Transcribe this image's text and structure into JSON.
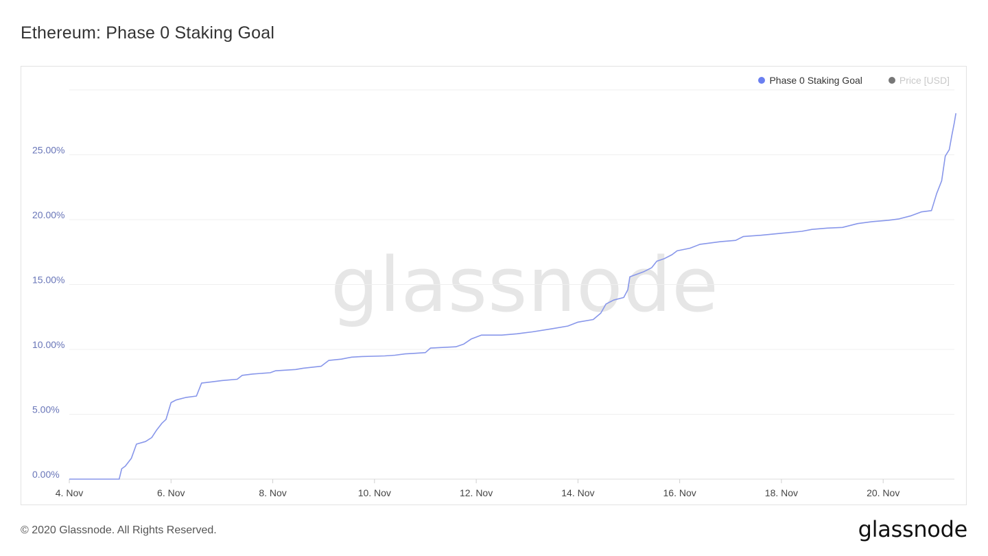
{
  "page": {
    "title": "Ethereum: Phase 0 Staking Goal",
    "watermark": "glassnode",
    "copyright": "© 2020 Glassnode. All Rights Reserved.",
    "logo": "glassnode"
  },
  "colors": {
    "series": "#8796ea",
    "legend_dot_primary": "#6a7ff0",
    "legend_dot_price": "#777777",
    "axis_label": "#6875b8",
    "grid": "#efefef"
  },
  "chart_data": {
    "type": "line",
    "title": "Ethereum: Phase 0 Staking Goal",
    "xlabel": "",
    "ylabel": "",
    "x_tick_labels": [
      "4. Nov",
      "6. Nov",
      "8. Nov",
      "10. Nov",
      "12. Nov",
      "14. Nov",
      "16. Nov",
      "18. Nov",
      "20. Nov"
    ],
    "x_tick_days": [
      4,
      6,
      8,
      10,
      12,
      14,
      16,
      18,
      20
    ],
    "xlim": [
      4.0,
      21.4
    ],
    "y_tick_labels": [
      "0.00%",
      "5.00%",
      "10.00%",
      "15.00%",
      "20.00%",
      "25.00%"
    ],
    "y_tick_values": [
      0,
      5,
      10,
      15,
      20,
      25
    ],
    "ylim": [
      0,
      30
    ],
    "grid": true,
    "legend_position": "top-right",
    "legend": [
      {
        "label": "Phase 0 Staking Goal",
        "active": true
      },
      {
        "label": "Price [USD]",
        "active": false
      }
    ],
    "series": [
      {
        "name": "Phase 0 Staking Goal",
        "unit": "%",
        "points": [
          [
            4.0,
            0.0
          ],
          [
            4.98,
            0.0
          ],
          [
            5.03,
            0.8
          ],
          [
            5.1,
            1.0
          ],
          [
            5.22,
            1.6
          ],
          [
            5.32,
            2.7
          ],
          [
            5.5,
            2.9
          ],
          [
            5.62,
            3.2
          ],
          [
            5.72,
            3.8
          ],
          [
            5.82,
            4.3
          ],
          [
            5.9,
            4.6
          ],
          [
            6.0,
            5.9
          ],
          [
            6.1,
            6.1
          ],
          [
            6.3,
            6.3
          ],
          [
            6.5,
            6.4
          ],
          [
            6.6,
            7.4
          ],
          [
            6.8,
            7.5
          ],
          [
            7.0,
            7.6
          ],
          [
            7.3,
            7.7
          ],
          [
            7.4,
            8.0
          ],
          [
            7.6,
            8.1
          ],
          [
            7.95,
            8.2
          ],
          [
            8.05,
            8.35
          ],
          [
            8.45,
            8.45
          ],
          [
            8.6,
            8.55
          ],
          [
            8.95,
            8.7
          ],
          [
            9.1,
            9.15
          ],
          [
            9.35,
            9.25
          ],
          [
            9.55,
            9.4
          ],
          [
            9.75,
            9.45
          ],
          [
            10.2,
            9.5
          ],
          [
            10.4,
            9.55
          ],
          [
            10.6,
            9.65
          ],
          [
            10.8,
            9.7
          ],
          [
            11.0,
            9.75
          ],
          [
            11.1,
            10.1
          ],
          [
            11.6,
            10.2
          ],
          [
            11.75,
            10.4
          ],
          [
            11.9,
            10.8
          ],
          [
            12.1,
            11.1
          ],
          [
            12.5,
            11.1
          ],
          [
            12.8,
            11.2
          ],
          [
            13.1,
            11.35
          ],
          [
            13.5,
            11.6
          ],
          [
            13.8,
            11.8
          ],
          [
            14.0,
            12.1
          ],
          [
            14.3,
            12.3
          ],
          [
            14.45,
            12.8
          ],
          [
            14.55,
            13.5
          ],
          [
            14.7,
            13.8
          ],
          [
            14.9,
            14.0
          ],
          [
            14.98,
            14.6
          ],
          [
            15.02,
            15.6
          ],
          [
            15.3,
            16.0
          ],
          [
            15.45,
            16.3
          ],
          [
            15.55,
            16.8
          ],
          [
            15.7,
            17.0
          ],
          [
            15.85,
            17.3
          ],
          [
            15.95,
            17.6
          ],
          [
            16.2,
            17.8
          ],
          [
            16.4,
            18.1
          ],
          [
            16.8,
            18.3
          ],
          [
            17.1,
            18.4
          ],
          [
            17.25,
            18.7
          ],
          [
            17.6,
            18.8
          ],
          [
            18.0,
            18.95
          ],
          [
            18.4,
            19.1
          ],
          [
            18.6,
            19.25
          ],
          [
            18.9,
            19.35
          ],
          [
            19.2,
            19.4
          ],
          [
            19.5,
            19.7
          ],
          [
            19.8,
            19.85
          ],
          [
            20.1,
            19.95
          ],
          [
            20.3,
            20.05
          ],
          [
            20.55,
            20.3
          ],
          [
            20.75,
            20.6
          ],
          [
            20.95,
            20.7
          ],
          [
            21.05,
            22.0
          ],
          [
            21.15,
            23.0
          ],
          [
            21.22,
            24.9
          ],
          [
            21.3,
            25.4
          ],
          [
            21.35,
            26.5
          ],
          [
            21.4,
            27.5
          ],
          [
            21.43,
            28.2
          ]
        ]
      }
    ]
  }
}
